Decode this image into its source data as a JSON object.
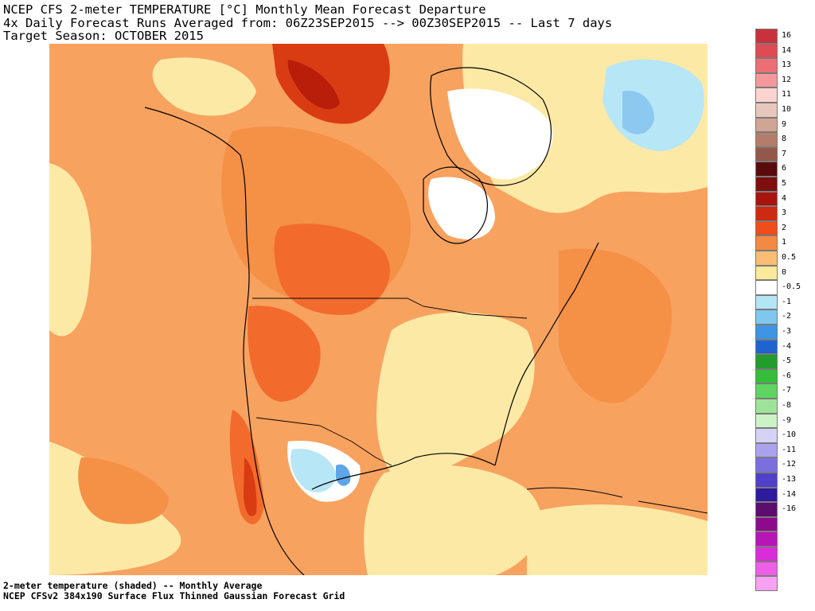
{
  "title": {
    "line1": "NCEP CFS 2-meter TEMPERATURE [°C] Monthly Mean Forecast Departure",
    "line2": "4x Daily Forecast Runs Averaged from: 06Z23SEP2015 --> 00Z30SEP2015 -- Last 7 days",
    "line3": "Target Season: OCTOBER 2015"
  },
  "footer": {
    "line1": "2-meter temperature (shaded) -- Monthly Average",
    "line2": "NCEP CFSv2 384x190 Surface Flux Thinned Gaussian Forecast Grid"
  },
  "legend": {
    "entries": [
      {
        "label": "16",
        "color": "#c8323c"
      },
      {
        "label": "14",
        "color": "#de4b53"
      },
      {
        "label": "13",
        "color": "#ec6f75"
      },
      {
        "label": "12",
        "color": "#f4999b"
      },
      {
        "label": "11",
        "color": "#fbd4d1"
      },
      {
        "label": "10",
        "color": "#e7c7bb"
      },
      {
        "label": "9",
        "color": "#d0a593"
      },
      {
        "label": "8",
        "color": "#b27d6b"
      },
      {
        "label": "7",
        "color": "#94584a"
      },
      {
        "label": "6",
        "color": "#5a0c0c"
      },
      {
        "label": "5",
        "color": "#7d0f0f"
      },
      {
        "label": "4",
        "color": "#a8140e"
      },
      {
        "label": "3",
        "color": "#cd2a12"
      },
      {
        "label": "2",
        "color": "#ef4d1b"
      },
      {
        "label": "1",
        "color": "#f38a44"
      },
      {
        "label": "0.5",
        "color": "#f8bd73"
      },
      {
        "label": "0",
        "color": "#fde99a"
      },
      {
        "label": "-0.5",
        "color": "#ffffff"
      },
      {
        "label": "-1",
        "color": "#b3e6f5"
      },
      {
        "label": "-2",
        "color": "#7fc7ee"
      },
      {
        "label": "-3",
        "color": "#3d95e3"
      },
      {
        "label": "-4",
        "color": "#1e63cf"
      },
      {
        "label": "-5",
        "color": "#219c2d"
      },
      {
        "label": "-6",
        "color": "#36be3a"
      },
      {
        "label": "-7",
        "color": "#5fd461"
      },
      {
        "label": "-8",
        "color": "#9ee39a"
      },
      {
        "label": "-9",
        "color": "#cdf2c8"
      },
      {
        "label": "-10",
        "color": "#d6d2f5"
      },
      {
        "label": "-11",
        "color": "#aaa2ec"
      },
      {
        "label": "-12",
        "color": "#7b6fe0"
      },
      {
        "label": "-13",
        "color": "#5140c8"
      },
      {
        "label": "-14",
        "color": "#2e1a9c"
      },
      {
        "label": "-16",
        "color": "#5c0d6e"
      },
      {
        "label": "",
        "color": "#8c0b8c"
      },
      {
        "label": "",
        "color": "#b516b5"
      },
      {
        "label": "",
        "color": "#d92dd9"
      },
      {
        "label": "",
        "color": "#ee5fe8"
      },
      {
        "label": "",
        "color": "#f7a1f2"
      }
    ]
  },
  "map": {
    "colors": {
      "base": "#f8a25f",
      "warm1": "#f59047",
      "warm2": "#f26b2c",
      "warm3": "#d93c12",
      "hot": "#b81e0a",
      "cool_yellow": "#fde9a6",
      "white": "#ffffff",
      "light_blue": "#b7e6f6",
      "blue": "#8cc8ef",
      "deep_blue": "#5ea6e7",
      "coast": "#000000"
    }
  }
}
